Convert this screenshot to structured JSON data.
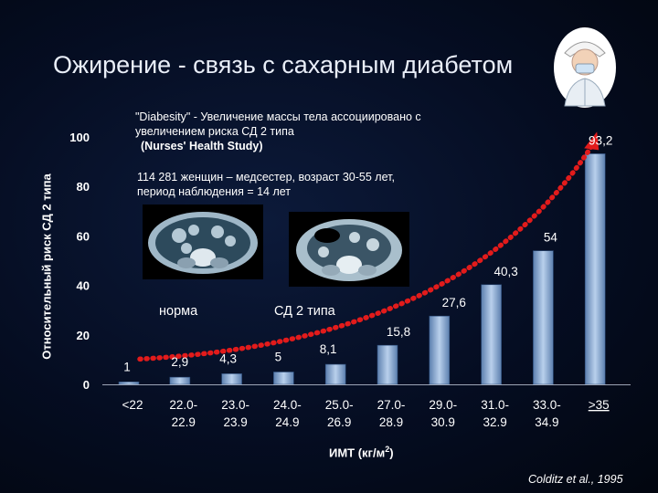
{
  "slide": {
    "title": "Ожирение - связь с сахарным диабетом",
    "note_main": "\"Diabesity\" - Увеличение массы тела ассоциировано с увеличением риска СД 2 типа",
    "note_study": "(Nurses' Health Study)",
    "note_cohort_line1": "114  281 женщин – медсестер,   возраст 30-55 лет,",
    "note_cohort_line2": "период наблюдения  = 14 лет",
    "label_normal": "норма",
    "label_diabetes": "СД 2 типа",
    "source": "Colditz et al., 1995",
    "colors": {
      "background": "#050d22",
      "bar": "#8fb0d8",
      "curve": "#e21b1b"
    }
  },
  "chart_data": {
    "type": "bar",
    "ylabel": "Относительный риск  СД  2 типа",
    "xlabel": "ИМТ  (кг/м",
    "xlabel_sup": "2",
    "xlabel_suffix": ")",
    "ylim": [
      0,
      100
    ],
    "yticks": [
      "0",
      "20",
      "40",
      "60",
      "80",
      "100"
    ],
    "categories": [
      [
        "<22"
      ],
      [
        "22.0-",
        "22.9"
      ],
      [
        "23.0-",
        "23.9"
      ],
      [
        "24.0-",
        "24.9"
      ],
      [
        "25.0-",
        "26.9"
      ],
      [
        "27.0-",
        "28.9"
      ],
      [
        "29.0-",
        "30.9"
      ],
      [
        "31.0-",
        "32.9"
      ],
      [
        "33.0-",
        "34.9"
      ],
      [
        ">35"
      ]
    ],
    "values": [
      1,
      2.9,
      4.3,
      5,
      8.1,
      15.8,
      27.6,
      40.3,
      54,
      93.2
    ],
    "value_labels": [
      "1",
      "2,9",
      "4,3",
      "5",
      "8,1",
      "15,8",
      "27,6",
      "40,3",
      "54",
      "93,2"
    ],
    "trend_curve": "red dotted arrow rising exponentially from first to last bar",
    "grid": false,
    "legend": "none"
  }
}
